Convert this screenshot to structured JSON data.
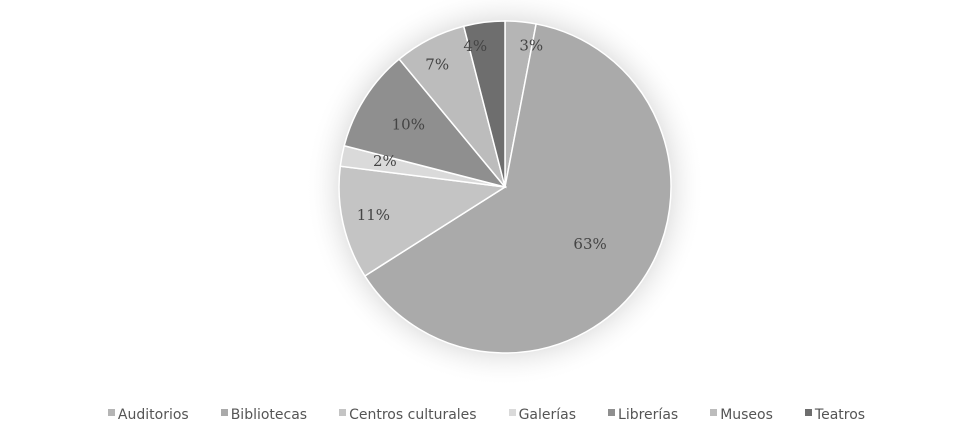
{
  "chart_data": {
    "type": "pie",
    "title": "",
    "legend_position": "bottom",
    "slices": [
      {
        "name": "Auditorios",
        "value": 3,
        "label": "3%",
        "color": "#b5b5b5"
      },
      {
        "name": "Bibliotecas",
        "value": 63,
        "label": "63%",
        "color": "#aaaaaa"
      },
      {
        "name": "Centros culturales",
        "value": 11,
        "label": "11%",
        "color": "#c4c4c4"
      },
      {
        "name": "Galerías",
        "value": 2,
        "label": "2%",
        "color": "#dadada"
      },
      {
        "name": "Librerías",
        "value": 10,
        "label": "10%",
        "color": "#8f8f8f"
      },
      {
        "name": "Museos",
        "value": 7,
        "label": "7%",
        "color": "#bcbcbc"
      },
      {
        "name": "Teatros",
        "value": 4,
        "label": "4%",
        "color": "#6e6e6e"
      }
    ]
  }
}
